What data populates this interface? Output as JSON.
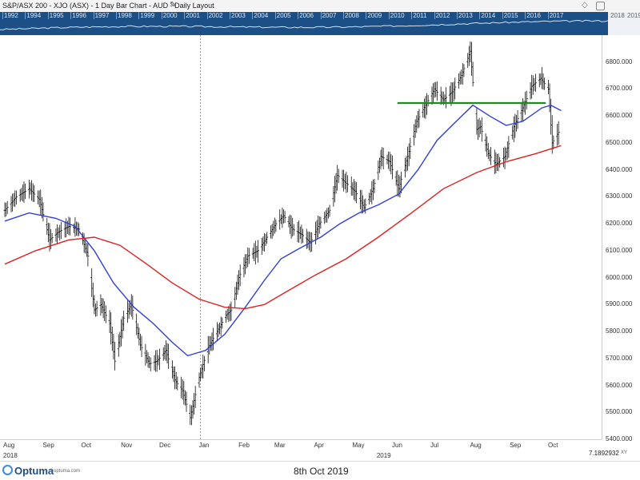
{
  "header": {
    "title": "S&P/ASX 200 - XJO (ASX) - 1 Day Bar Chart - AUD - Daily Layout",
    "edit_icon": "pencil-icon",
    "right_icons": [
      "diamond-icon",
      "bell-icon"
    ]
  },
  "navigator": {
    "years": [
      "1992",
      "1994",
      "1995",
      "1996",
      "1997",
      "1998",
      "1999",
      "2000",
      "2001",
      "2002",
      "2003",
      "2004",
      "2005",
      "2006",
      "2007",
      "2008",
      "2009",
      "2010",
      "2011",
      "2012",
      "2013",
      "2014",
      "2015",
      "2016",
      "2017",
      "2018",
      "2019"
    ]
  },
  "chart_data": {
    "type": "bar",
    "title": "S&P/ASX 200 - XJO (ASX) - 1 Day Bar Chart - AUD - Daily Layout",
    "x_range": [
      "2018-08-01",
      "2019-10-31"
    ],
    "ylim": [
      5400,
      6900
    ],
    "y_ticks": [
      "5400.000",
      "5500.000",
      "5600.000",
      "5700.000",
      "5800.000",
      "5900.000",
      "6000.000",
      "6100.000",
      "6200.000",
      "6300.000",
      "6400.000",
      "6500.000",
      "6600.000",
      "6700.000",
      "6800.000"
    ],
    "x_month_ticks": [
      "Aug",
      "Sep",
      "Oct",
      "Nov",
      "Dec",
      "Jan",
      "Feb",
      "Mar",
      "Apr",
      "May",
      "Jun",
      "Jul",
      "Aug",
      "Sep",
      "Oct"
    ],
    "x_year_labels": [
      "2018",
      "2019"
    ],
    "grid": false,
    "price_anchors": [
      {
        "date": "2018-08-01",
        "value": 6250
      },
      {
        "date": "2018-08-10",
        "value": 6300
      },
      {
        "date": "2018-08-20",
        "value": 6330
      },
      {
        "date": "2018-08-28",
        "value": 6290
      },
      {
        "date": "2018-09-05",
        "value": 6140
      },
      {
        "date": "2018-09-12",
        "value": 6170
      },
      {
        "date": "2018-09-20",
        "value": 6190
      },
      {
        "date": "2018-09-28",
        "value": 6180
      },
      {
        "date": "2018-10-05",
        "value": 6080
      },
      {
        "date": "2018-10-10",
        "value": 5880
      },
      {
        "date": "2018-10-15",
        "value": 5900
      },
      {
        "date": "2018-10-22",
        "value": 5830
      },
      {
        "date": "2018-10-26",
        "value": 5690
      },
      {
        "date": "2018-11-02",
        "value": 5850
      },
      {
        "date": "2018-11-08",
        "value": 5900
      },
      {
        "date": "2018-11-15",
        "value": 5750
      },
      {
        "date": "2018-11-22",
        "value": 5680
      },
      {
        "date": "2018-11-28",
        "value": 5690
      },
      {
        "date": "2018-12-05",
        "value": 5730
      },
      {
        "date": "2018-12-12",
        "value": 5620
      },
      {
        "date": "2018-12-18",
        "value": 5580
      },
      {
        "date": "2018-12-24",
        "value": 5480
      },
      {
        "date": "2018-12-31",
        "value": 5630
      },
      {
        "date": "2019-01-07",
        "value": 5740
      },
      {
        "date": "2019-01-14",
        "value": 5800
      },
      {
        "date": "2019-01-21",
        "value": 5860
      },
      {
        "date": "2019-01-25",
        "value": 5880
      },
      {
        "date": "2019-01-31",
        "value": 6000
      },
      {
        "date": "2019-02-07",
        "value": 6080
      },
      {
        "date": "2019-02-15",
        "value": 6100
      },
      {
        "date": "2019-02-22",
        "value": 6150
      },
      {
        "date": "2019-03-01",
        "value": 6200
      },
      {
        "date": "2019-03-07",
        "value": 6230
      },
      {
        "date": "2019-03-14",
        "value": 6180
      },
      {
        "date": "2019-03-21",
        "value": 6160
      },
      {
        "date": "2019-03-28",
        "value": 6130
      },
      {
        "date": "2019-04-04",
        "value": 6200
      },
      {
        "date": "2019-04-12",
        "value": 6250
      },
      {
        "date": "2019-04-18",
        "value": 6380
      },
      {
        "date": "2019-04-25",
        "value": 6350
      },
      {
        "date": "2019-05-02",
        "value": 6320
      },
      {
        "date": "2019-05-09",
        "value": 6260
      },
      {
        "date": "2019-05-16",
        "value": 6330
      },
      {
        "date": "2019-05-22",
        "value": 6450
      },
      {
        "date": "2019-05-29",
        "value": 6430
      },
      {
        "date": "2019-06-05",
        "value": 6330
      },
      {
        "date": "2019-06-12",
        "value": 6450
      },
      {
        "date": "2019-06-19",
        "value": 6580
      },
      {
        "date": "2019-06-26",
        "value": 6640
      },
      {
        "date": "2019-07-03",
        "value": 6700
      },
      {
        "date": "2019-07-10",
        "value": 6660
      },
      {
        "date": "2019-07-17",
        "value": 6690
      },
      {
        "date": "2019-07-24",
        "value": 6750
      },
      {
        "date": "2019-07-31",
        "value": 6840
      },
      {
        "date": "2019-08-05",
        "value": 6550
      },
      {
        "date": "2019-08-08",
        "value": 6560
      },
      {
        "date": "2019-08-14",
        "value": 6460
      },
      {
        "date": "2019-08-20",
        "value": 6420
      },
      {
        "date": "2019-08-27",
        "value": 6450
      },
      {
        "date": "2019-09-03",
        "value": 6560
      },
      {
        "date": "2019-09-10",
        "value": 6630
      },
      {
        "date": "2019-09-17",
        "value": 6710
      },
      {
        "date": "2019-09-24",
        "value": 6740
      },
      {
        "date": "2019-09-30",
        "value": 6700
      },
      {
        "date": "2019-10-03",
        "value": 6500
      },
      {
        "date": "2019-10-08",
        "value": 6540
      }
    ],
    "series": [
      {
        "kind": "moving-average",
        "color": "#2e3fd6",
        "points": [
          {
            "date": "2018-08-01",
            "value": 6210
          },
          {
            "date": "2018-08-20",
            "value": 6240
          },
          {
            "date": "2018-09-10",
            "value": 6220
          },
          {
            "date": "2018-09-25",
            "value": 6190
          },
          {
            "date": "2018-10-10",
            "value": 6100
          },
          {
            "date": "2018-10-25",
            "value": 5980
          },
          {
            "date": "2018-11-10",
            "value": 5890
          },
          {
            "date": "2018-11-25",
            "value": 5830
          },
          {
            "date": "2018-12-10",
            "value": 5760
          },
          {
            "date": "2018-12-22",
            "value": 5710
          },
          {
            "date": "2019-01-05",
            "value": 5730
          },
          {
            "date": "2019-01-20",
            "value": 5790
          },
          {
            "date": "2019-02-05",
            "value": 5890
          },
          {
            "date": "2019-02-20",
            "value": 5990
          },
          {
            "date": "2019-03-05",
            "value": 6070
          },
          {
            "date": "2019-03-20",
            "value": 6110
          },
          {
            "date": "2019-04-05",
            "value": 6150
          },
          {
            "date": "2019-04-20",
            "value": 6200
          },
          {
            "date": "2019-05-05",
            "value": 6240
          },
          {
            "date": "2019-05-20",
            "value": 6270
          },
          {
            "date": "2019-06-05",
            "value": 6310
          },
          {
            "date": "2019-06-20",
            "value": 6400
          },
          {
            "date": "2019-07-05",
            "value": 6510
          },
          {
            "date": "2019-07-20",
            "value": 6580
          },
          {
            "date": "2019-08-02",
            "value": 6640
          },
          {
            "date": "2019-08-15",
            "value": 6600
          },
          {
            "date": "2019-08-28",
            "value": 6565
          },
          {
            "date": "2019-09-10",
            "value": 6580
          },
          {
            "date": "2019-09-25",
            "value": 6630
          },
          {
            "date": "2019-10-02",
            "value": 6640
          },
          {
            "date": "2019-10-10",
            "value": 6620
          }
        ]
      },
      {
        "kind": "moving-average",
        "color": "#e02020",
        "points": [
          {
            "date": "2018-08-01",
            "value": 6050
          },
          {
            "date": "2018-08-25",
            "value": 6100
          },
          {
            "date": "2018-09-20",
            "value": 6140
          },
          {
            "date": "2018-10-10",
            "value": 6150
          },
          {
            "date": "2018-10-30",
            "value": 6120
          },
          {
            "date": "2018-11-20",
            "value": 6050
          },
          {
            "date": "2018-12-10",
            "value": 5980
          },
          {
            "date": "2018-12-31",
            "value": 5920
          },
          {
            "date": "2019-01-20",
            "value": 5890
          },
          {
            "date": "2019-02-05",
            "value": 5885
          },
          {
            "date": "2019-02-20",
            "value": 5900
          },
          {
            "date": "2019-03-10",
            "value": 5950
          },
          {
            "date": "2019-04-01",
            "value": 6010
          },
          {
            "date": "2019-04-25",
            "value": 6070
          },
          {
            "date": "2019-05-20",
            "value": 6150
          },
          {
            "date": "2019-06-15",
            "value": 6240
          },
          {
            "date": "2019-07-10",
            "value": 6330
          },
          {
            "date": "2019-08-05",
            "value": 6390
          },
          {
            "date": "2019-08-28",
            "value": 6430
          },
          {
            "date": "2019-09-20",
            "value": 6460
          },
          {
            "date": "2019-10-10",
            "value": 6490
          }
        ]
      }
    ],
    "reference_line": {
      "color": "#1e8a1e",
      "from": "2019-06-04",
      "to": "2019-09-28",
      "value": 6648
    },
    "cursor_line_date": "2019-01-01"
  },
  "readout": {
    "value": "7.1892932",
    "mode": "XY"
  },
  "footer": {
    "brand": "Optuma",
    "site": "optuma.com",
    "caption": "8th Oct 2019"
  }
}
